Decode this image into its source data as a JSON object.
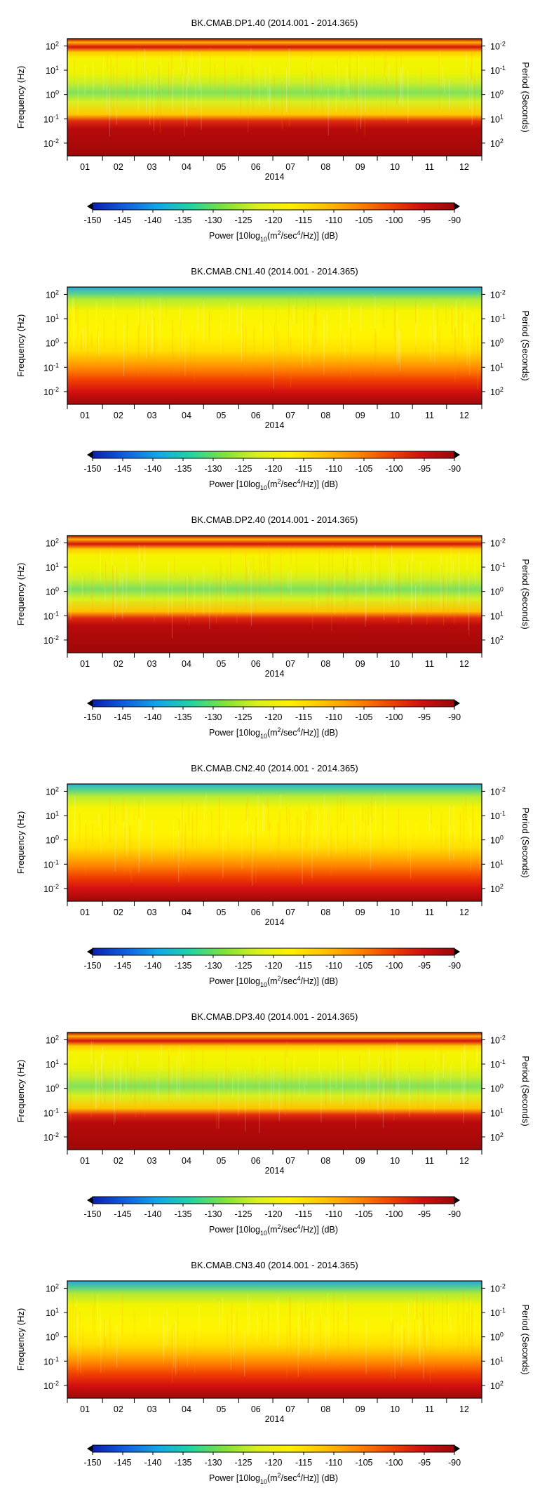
{
  "shared": {
    "x_ticks": [
      "01",
      "02",
      "03",
      "04",
      "05",
      "06",
      "07",
      "08",
      "09",
      "10",
      "11",
      "12"
    ],
    "x_label": "2014",
    "freq_ticks": [
      {
        "base": "10",
        "exp": "2"
      },
      {
        "base": "10",
        "exp": "1"
      },
      {
        "base": "10",
        "exp": "0"
      },
      {
        "base": "10",
        "exp": "-1"
      },
      {
        "base": "10",
        "exp": "-2"
      }
    ],
    "period_ticks": [
      {
        "base": "10",
        "exp": "-2"
      },
      {
        "base": "10",
        "exp": "-1"
      },
      {
        "base": "10",
        "exp": "0"
      },
      {
        "base": "10",
        "exp": "1"
      },
      {
        "base": "10",
        "exp": "2"
      }
    ],
    "ylabel_left": "Frequency (Hz)",
    "ylabel_right": "Period (Seconds)",
    "colorbar_ticks": [
      "-150",
      "-145",
      "-140",
      "-135",
      "-130",
      "-125",
      "-120",
      "-115",
      "-110",
      "-105",
      "-100",
      "-95",
      "-90"
    ],
    "colorbar_label": {
      "pre": "Power [10log",
      "sub": "10",
      "mid": "(m",
      "sup1": "2",
      "mid2": "/sec",
      "sup2": "4",
      "post": "/Hz)] (dB)"
    },
    "colorbar_colors": [
      "#0b1fb0",
      "#1060e0",
      "#12a8e8",
      "#22d4a0",
      "#7fe23a",
      "#d8f01c",
      "#fff000",
      "#ffc400",
      "#ff8a00",
      "#f04800",
      "#d01010",
      "#9a0808"
    ]
  },
  "chart_data": [
    {
      "type": "heatmap",
      "title": "BK.CMAB.DP1.40 (2014.001 - 2014.365)",
      "xlabel": "2014",
      "ylabel": "Frequency (Hz)",
      "y2label": "Period (Seconds)",
      "clim": [
        -150,
        -90
      ],
      "yscale": "log",
      "ylim": [
        0.003,
        200
      ],
      "colorbar_label": "Power [10log10(m2/sec4/Hz)] (dB)",
      "profile": [
        {
          "hz": 200,
          "color": "#9e0808"
        },
        {
          "hz": 140,
          "color": "#ffb000"
        },
        {
          "hz": 90,
          "color": "#d61010"
        },
        {
          "hz": 55,
          "color": "#ffcc00"
        },
        {
          "hz": 30,
          "color": "#f6f400"
        },
        {
          "hz": 8,
          "color": "#eef400"
        },
        {
          "hz": 3,
          "color": "#c8ee2a"
        },
        {
          "hz": 1.2,
          "color": "#80e25a"
        },
        {
          "hz": 0.5,
          "color": "#d8f020"
        },
        {
          "hz": 0.15,
          "color": "#ffc800"
        },
        {
          "hz": 0.08,
          "color": "#e02a10"
        },
        {
          "hz": 0.04,
          "color": "#b80a0a"
        },
        {
          "hz": 0.003,
          "color": "#a00808"
        }
      ]
    },
    {
      "type": "heatmap",
      "title": "BK.CMAB.CN1.40 (2014.001 - 2014.365)",
      "xlabel": "2014",
      "ylabel": "Frequency (Hz)",
      "y2label": "Period (Seconds)",
      "clim": [
        -150,
        -90
      ],
      "yscale": "log",
      "ylim": [
        0.003,
        200
      ],
      "colorbar_label": "Power [10log10(m2/sec4/Hz)] (dB)",
      "profile": [
        {
          "hz": 200,
          "color": "#2ea8d8"
        },
        {
          "hz": 120,
          "color": "#4ccc9c"
        },
        {
          "hz": 60,
          "color": "#b4ec30"
        },
        {
          "hz": 20,
          "color": "#f8f400"
        },
        {
          "hz": 2,
          "color": "#fff400"
        },
        {
          "hz": 0.5,
          "color": "#ffe000"
        },
        {
          "hz": 0.2,
          "color": "#ffb400"
        },
        {
          "hz": 0.08,
          "color": "#ff8000"
        },
        {
          "hz": 0.03,
          "color": "#f04000"
        },
        {
          "hz": 0.01,
          "color": "#d41010"
        },
        {
          "hz": 0.003,
          "color": "#a00808"
        }
      ]
    },
    {
      "type": "heatmap",
      "title": "BK.CMAB.DP2.40 (2014.001 - 2014.365)",
      "xlabel": "2014",
      "ylabel": "Frequency (Hz)",
      "y2label": "Period (Seconds)",
      "clim": [
        -150,
        -90
      ],
      "yscale": "log",
      "ylim": [
        0.003,
        200
      ],
      "colorbar_label": "Power [10log10(m2/sec4/Hz)] (dB)",
      "profile": [
        {
          "hz": 200,
          "color": "#9e0808"
        },
        {
          "hz": 140,
          "color": "#ffb000"
        },
        {
          "hz": 90,
          "color": "#d61010"
        },
        {
          "hz": 55,
          "color": "#ffcc00"
        },
        {
          "hz": 30,
          "color": "#f6f400"
        },
        {
          "hz": 8,
          "color": "#eef400"
        },
        {
          "hz": 3,
          "color": "#c8ee2a"
        },
        {
          "hz": 1.2,
          "color": "#7ce060"
        },
        {
          "hz": 0.5,
          "color": "#d8f020"
        },
        {
          "hz": 0.15,
          "color": "#ffc000"
        },
        {
          "hz": 0.08,
          "color": "#e02a10"
        },
        {
          "hz": 0.04,
          "color": "#b80a0a"
        },
        {
          "hz": 0.003,
          "color": "#a00808"
        }
      ]
    },
    {
      "type": "heatmap",
      "title": "BK.CMAB.CN2.40 (2014.001 - 2014.365)",
      "xlabel": "2014",
      "ylabel": "Frequency (Hz)",
      "y2label": "Period (Seconds)",
      "clim": [
        -150,
        -90
      ],
      "yscale": "log",
      "ylim": [
        0.003,
        200
      ],
      "colorbar_label": "Power [10log10(m2/sec4/Hz)] (dB)",
      "profile": [
        {
          "hz": 200,
          "color": "#30b0d0"
        },
        {
          "hz": 120,
          "color": "#50d090"
        },
        {
          "hz": 60,
          "color": "#bcec30"
        },
        {
          "hz": 20,
          "color": "#f8f400"
        },
        {
          "hz": 2,
          "color": "#fff400"
        },
        {
          "hz": 0.5,
          "color": "#ffe000"
        },
        {
          "hz": 0.2,
          "color": "#ffb400"
        },
        {
          "hz": 0.08,
          "color": "#ff8000"
        },
        {
          "hz": 0.03,
          "color": "#f04000"
        },
        {
          "hz": 0.01,
          "color": "#d41010"
        },
        {
          "hz": 0.003,
          "color": "#a00808"
        }
      ]
    },
    {
      "type": "heatmap",
      "title": "BK.CMAB.DP3.40 (2014.001 - 2014.365)",
      "xlabel": "2014",
      "ylabel": "Frequency (Hz)",
      "y2label": "Period (Seconds)",
      "clim": [
        -150,
        -90
      ],
      "yscale": "log",
      "ylim": [
        0.003,
        200
      ],
      "colorbar_label": "Power [10log10(m2/sec4/Hz)] (dB)",
      "profile": [
        {
          "hz": 200,
          "color": "#9e0808"
        },
        {
          "hz": 140,
          "color": "#ffb000"
        },
        {
          "hz": 90,
          "color": "#d61010"
        },
        {
          "hz": 55,
          "color": "#ffcc00"
        },
        {
          "hz": 30,
          "color": "#f6f400"
        },
        {
          "hz": 8,
          "color": "#eef400"
        },
        {
          "hz": 3,
          "color": "#c8ee2a"
        },
        {
          "hz": 1.2,
          "color": "#80e25a"
        },
        {
          "hz": 0.5,
          "color": "#d8f020"
        },
        {
          "hz": 0.15,
          "color": "#ffc400"
        },
        {
          "hz": 0.08,
          "color": "#e02a10"
        },
        {
          "hz": 0.04,
          "color": "#b80a0a"
        },
        {
          "hz": 0.003,
          "color": "#a00808"
        }
      ]
    },
    {
      "type": "heatmap",
      "title": "BK.CMAB.CN3.40 (2014.001 - 2014.365)",
      "xlabel": "2014",
      "ylabel": "Frequency (Hz)",
      "y2label": "Period (Seconds)",
      "clim": [
        -150,
        -90
      ],
      "yscale": "log",
      "ylim": [
        0.003,
        200
      ],
      "colorbar_label": "Power [10log10(m2/sec4/Hz)] (dB)",
      "profile": [
        {
          "hz": 200,
          "color": "#2ea4d8"
        },
        {
          "hz": 120,
          "color": "#48c8a0"
        },
        {
          "hz": 60,
          "color": "#b0ea34"
        },
        {
          "hz": 20,
          "color": "#f4f400"
        },
        {
          "hz": 2,
          "color": "#fff400"
        },
        {
          "hz": 0.5,
          "color": "#ffe000"
        },
        {
          "hz": 0.2,
          "color": "#ffb800"
        },
        {
          "hz": 0.08,
          "color": "#ff8000"
        },
        {
          "hz": 0.03,
          "color": "#f04000"
        },
        {
          "hz": 0.01,
          "color": "#d41010"
        },
        {
          "hz": 0.003,
          "color": "#a00808"
        }
      ]
    }
  ]
}
